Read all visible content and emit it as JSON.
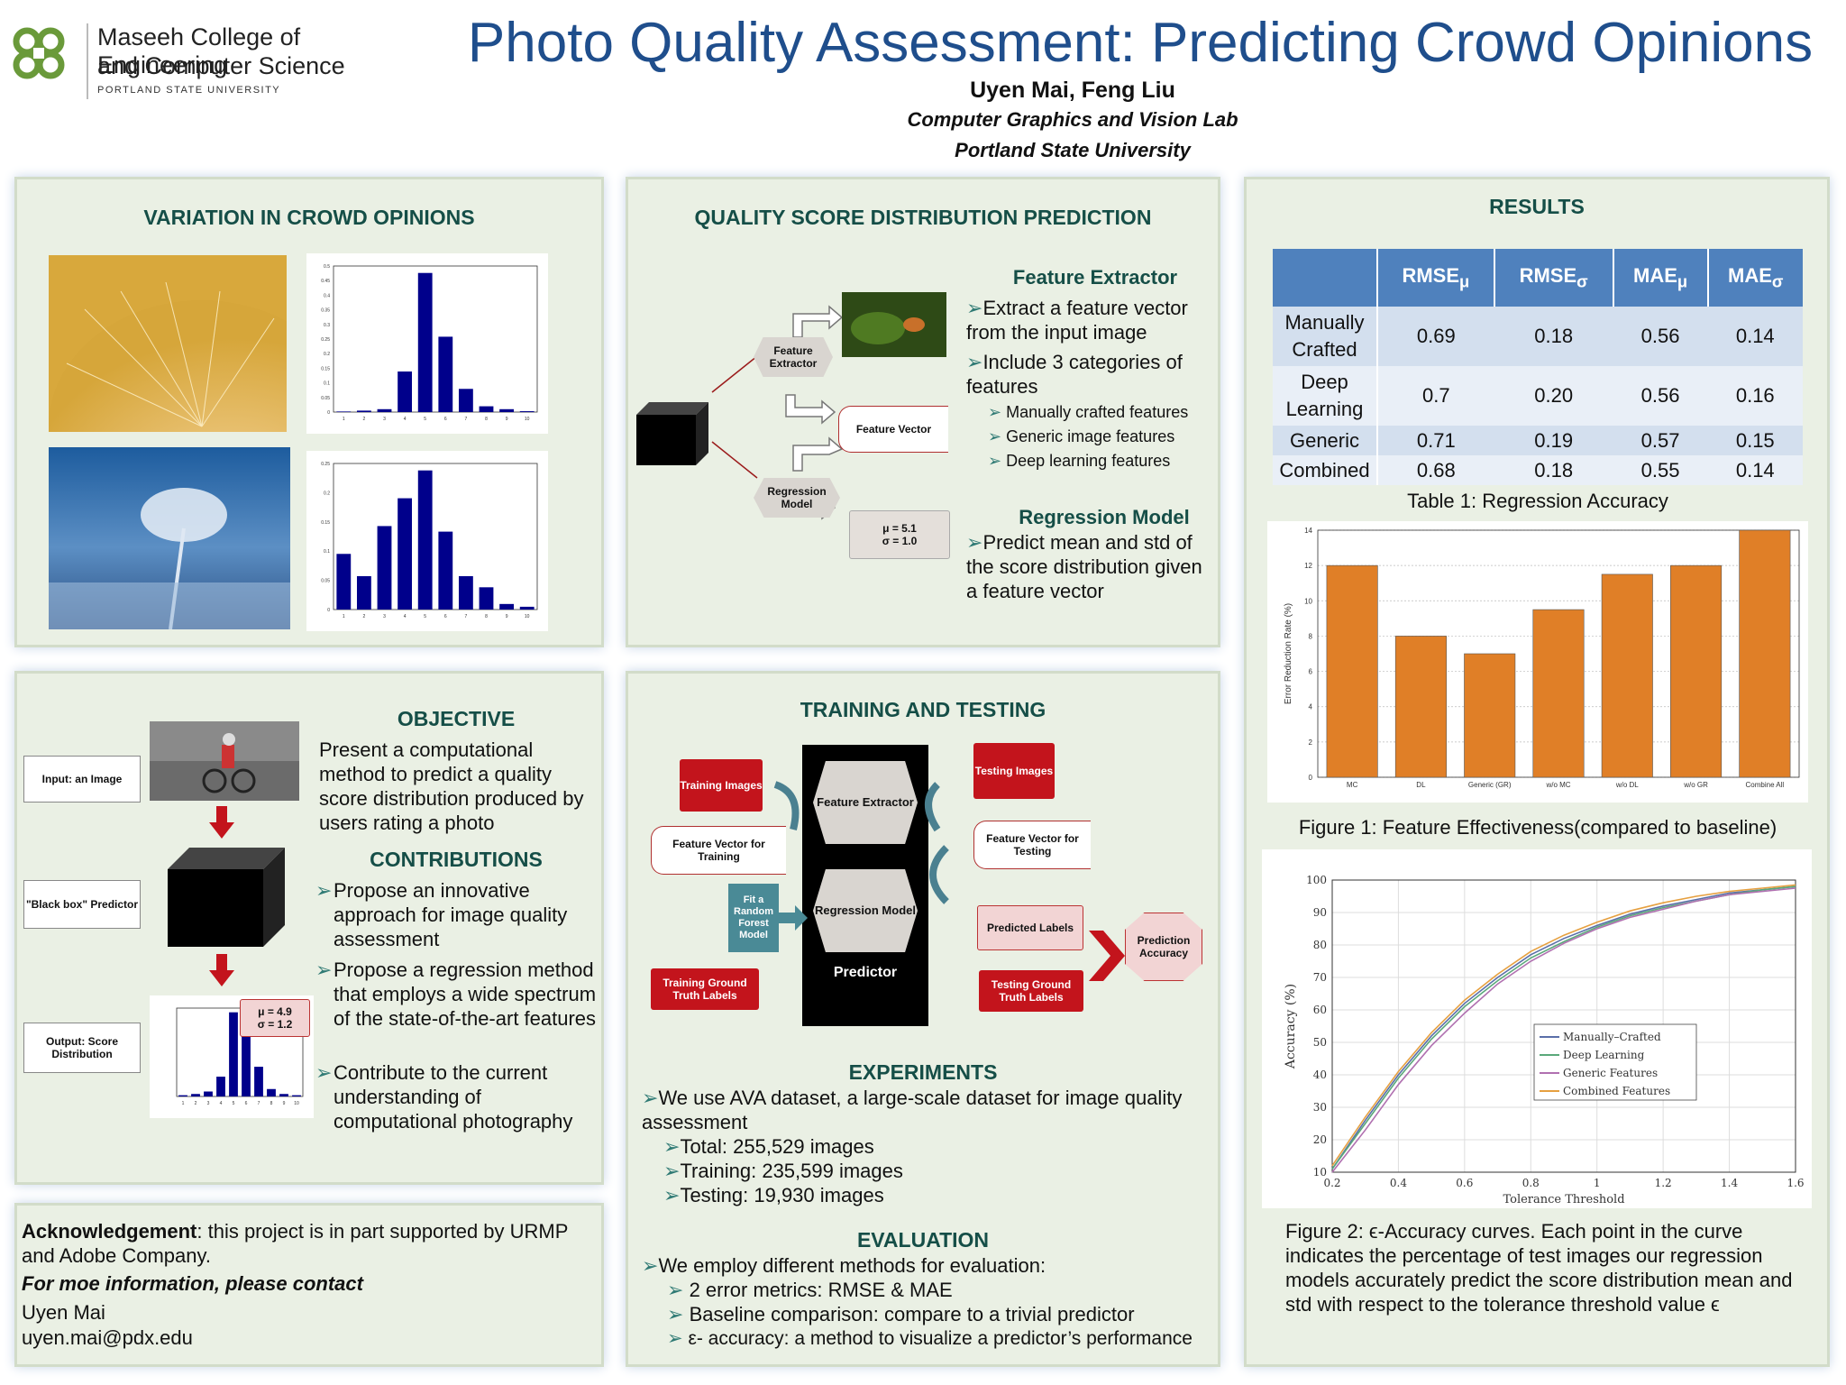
{
  "header": {
    "college_line1": "Maseeh College of Engineering",
    "college_line2": "and Computer Science",
    "university_small": "PORTLAND STATE UNIVERSITY",
    "title": "Photo Quality Assessment: Predicting Crowd Opinions",
    "authors": "Uyen Mai, Feng Liu",
    "lab": "Computer Graphics and Vision Lab",
    "university": "Portland State University"
  },
  "variation": {
    "title": "VARIATION IN CROWD OPINIONS",
    "hist1": [
      0.002,
      0.005,
      0.01,
      0.14,
      0.48,
      0.26,
      0.08,
      0.02,
      0.01,
      0.003
    ],
    "hist1_yticks": [
      "0.5",
      "0.45",
      "0.4",
      "0.35",
      "0.3",
      "0.25",
      "0.2",
      "0.15",
      "0.1",
      "0.05",
      "0"
    ],
    "hist2": [
      0.1,
      0.06,
      0.15,
      0.2,
      0.25,
      0.14,
      0.06,
      0.04,
      0.01,
      0.005
    ],
    "hist2_yticks": [
      "0.25",
      "0.2",
      "0.15",
      "0.1",
      "0.05",
      "0"
    ],
    "hist_xticks": [
      "1",
      "2",
      "3",
      "4",
      "5",
      "6",
      "7",
      "8",
      "9",
      "10"
    ]
  },
  "qsd": {
    "title": "QUALITY SCORE DISTRIBUTION PREDICTION",
    "feature_extractor_node": "Feature Extractor",
    "feature_vector_node": "Feature Vector",
    "regression_model_node": "Regression Model",
    "mu_label": "μ  = 5.1",
    "sigma_label": "σ = 1.0",
    "fe_heading": "Feature Extractor",
    "fe_bullets": [
      "Extract a feature vector from the input image",
      "Include 3 categories of features"
    ],
    "fe_sub_bullets": [
      "Manually crafted features",
      "Generic image features",
      "Deep learning features"
    ],
    "rm_heading": "Regression Model",
    "rm_bullet": "Predict mean and std of the score distribution given a feature vector"
  },
  "results": {
    "title": "RESULTS",
    "table_headers": [
      "RMSE",
      "RMSE",
      "MAE",
      "MAE"
    ],
    "table_subs": [
      "μ",
      "σ",
      "μ",
      "σ"
    ],
    "rows": [
      {
        "name": "Manually Crafted",
        "v": [
          "0.69",
          "0.18",
          "0.56",
          "0.14"
        ]
      },
      {
        "name": "Deep Learning",
        "v": [
          "0.7",
          "0.20",
          "0.56",
          "0.16"
        ]
      },
      {
        "name": "Generic",
        "v": [
          "0.71",
          "0.19",
          "0.57",
          "0.15"
        ]
      },
      {
        "name": "Combined",
        "v": [
          "0.68",
          "0.18",
          "0.55",
          "0.14"
        ]
      }
    ],
    "table_caption": "Table 1: Regression Accuracy",
    "fig1_caption": "Figure 1: Feature Effectiveness(compared to baseline)",
    "fig2_caption": "Figure 2: ϵ-Accuracy curves. Each point in the curve indicates the percentage of test images our regression models accurately predict the score distribution mean and std with respect to the tolerance threshold value ϵ"
  },
  "chart_data": [
    {
      "type": "bar",
      "ylabel": "Error Reduction Rate (%)",
      "categories": [
        "MC",
        "DL",
        "Generic (GR)",
        "w/o MC",
        "w/o DL",
        "w/o GR",
        "Combine All"
      ],
      "values": [
        12,
        8,
        7,
        9.5,
        11.5,
        12,
        14
      ],
      "ylim": [
        0,
        14
      ],
      "yticks": [
        "0",
        "2",
        "4",
        "6",
        "8",
        "10",
        "12",
        "14"
      ],
      "color": "#e07f27"
    },
    {
      "type": "line",
      "xlabel": "Tolerance Threshold",
      "ylabel": "Accuracy (%)",
      "xlim": [
        0.2,
        1.6
      ],
      "ylim": [
        10,
        100
      ],
      "xticks": [
        "0.2",
        "0.4",
        "0.6",
        "0.8",
        "1",
        "1.2",
        "1.4",
        "1.6"
      ],
      "yticks": [
        "10",
        "20",
        "30",
        "40",
        "50",
        "60",
        "70",
        "80",
        "90",
        "100"
      ],
      "x": [
        0.2,
        0.3,
        0.4,
        0.5,
        0.6,
        0.7,
        0.8,
        0.9,
        1.0,
        1.1,
        1.2,
        1.3,
        1.4,
        1.5,
        1.6
      ],
      "series": [
        {
          "name": "Manually–Crafted",
          "color": "#5a6fa8",
          "values": [
            11,
            26,
            40,
            52,
            62,
            70,
            77,
            82,
            86,
            89.5,
            92,
            94,
            96,
            97,
            98
          ]
        },
        {
          "name": "Deep Learning",
          "color": "#5aa87a",
          "values": [
            11,
            25,
            39,
            51,
            61,
            69,
            76,
            81,
            85.5,
            89,
            91.5,
            93.5,
            95.5,
            97,
            98
          ]
        },
        {
          "name": "Generic Features",
          "color": "#b070b0",
          "values": [
            10,
            23,
            37,
            49,
            59,
            68,
            75,
            80.5,
            85,
            88.5,
            91,
            93.5,
            95.5,
            96.5,
            97.5
          ]
        },
        {
          "name": "Combined Features",
          "color": "#e6a040",
          "values": [
            12,
            27,
            41,
            53,
            63,
            71,
            78,
            83,
            87,
            90.5,
            93,
            95,
            96.5,
            97.5,
            98.5
          ]
        }
      ]
    }
  ],
  "objective": {
    "input_label": "Input: an Image",
    "blackbox_label": "\"Black box\" Predictor",
    "output_label": "Output: Score Distribution",
    "mu_label": "μ  = 4.9",
    "sigma_label": "σ = 1.2",
    "hist3": [
      0.005,
      0.01,
      0.02,
      0.08,
      0.34,
      0.3,
      0.12,
      0.03,
      0.01,
      0.005
    ],
    "heading": "OBJECTIVE",
    "text": "Present a computational method to predict a quality score distribution produced by users rating a photo",
    "contrib_heading": "CONTRIBUTIONS",
    "contributions": [
      "Propose an innovative approach for image quality assessment",
      "Propose a regression method that employs a wide spectrum of the state-of-the-art features",
      "Contribute to the current understanding of computational photography"
    ]
  },
  "training": {
    "title": "TRAINING AND TESTING",
    "training_images": "Training Images",
    "fv_training": "Feature Vector for Training",
    "fit_model": "Fit a Random Forest Model",
    "training_gt": "Training Ground Truth Labels",
    "feature_extractor": "Feature Extractor",
    "regression_model": "Regression Model",
    "predictor": "Predictor",
    "testing_images": "Testing Images",
    "fv_testing": "Feature Vector for Testing",
    "predicted_labels": "Predicted Labels",
    "testing_gt": "Testing Ground Truth Labels",
    "prediction_accuracy": "Prediction Accuracy",
    "exp_heading": "EXPERIMENTS",
    "exp_text": "We use AVA dataset, a large-scale dataset for image quality assessment",
    "exp_items": [
      "Total: 255,529 images",
      "Training: 235,599 images",
      "Testing: 19,930 images"
    ],
    "eval_heading": "EVALUATION",
    "eval_text": "We employ different methods for evaluation:",
    "eval_items": [
      "2 error metrics: RMSE & MAE",
      "Baseline comparison: compare to a trivial predictor",
      "ε- accuracy: a method to visualize a predictor’s performance"
    ]
  },
  "ack": {
    "bold": "Acknowledgement",
    "text": ": this project is in part supported by URMP and Adobe Company.",
    "more": "For moe information, please contact",
    "name": "Uyen Mai",
    "email": "uyen.mai@pdx.edu"
  }
}
